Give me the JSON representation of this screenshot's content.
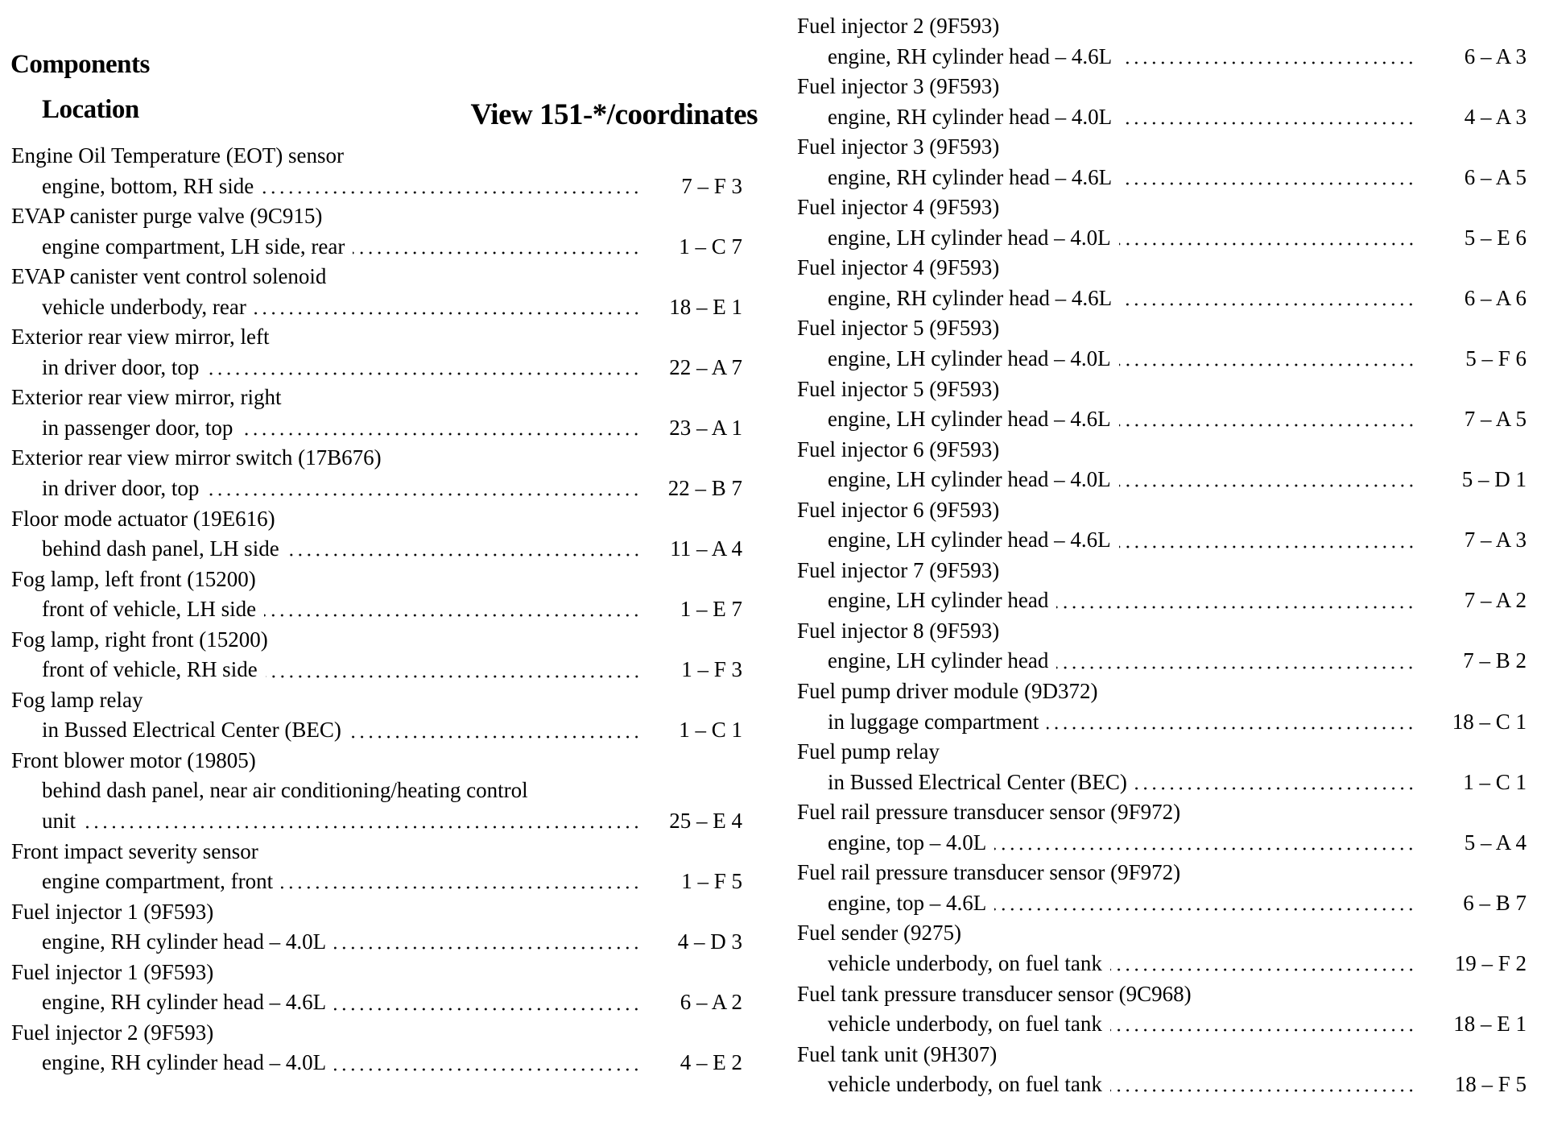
{
  "header": {
    "title": "Components",
    "location_heading": "Location",
    "view_heading": "View 151-*/coordinates"
  },
  "left_column": [
    {
      "name": "Engine Oil Temperature (EOT) sensor",
      "location": [
        "engine, bottom, RH side"
      ],
      "coord": "7 – F 3"
    },
    {
      "name": "EVAP canister purge valve (9C915)",
      "location": [
        "engine compartment, LH side, rear"
      ],
      "coord": "1 – C 7"
    },
    {
      "name": "EVAP canister vent control solenoid",
      "location": [
        "vehicle underbody, rear"
      ],
      "coord": "18 – E 1"
    },
    {
      "name": "Exterior rear view mirror, left",
      "location": [
        "in driver door, top"
      ],
      "coord": "22 – A 7"
    },
    {
      "name": "Exterior rear view mirror, right",
      "location": [
        "in passenger door, top"
      ],
      "coord": "23 – A 1"
    },
    {
      "name": "Exterior rear view mirror switch (17B676)",
      "location": [
        "in driver door, top"
      ],
      "coord": "22 – B 7"
    },
    {
      "name": "Floor mode actuator (19E616)",
      "location": [
        "behind dash panel, LH side"
      ],
      "coord": "11 – A 4"
    },
    {
      "name": "Fog lamp, left front (15200)",
      "location": [
        "front of vehicle, LH side"
      ],
      "coord": "1 – E 7"
    },
    {
      "name": "Fog lamp, right front (15200)",
      "location": [
        "front of vehicle, RH side"
      ],
      "coord": "1 – F 3"
    },
    {
      "name": "Fog lamp relay",
      "location": [
        "in Bussed Electrical Center (BEC)"
      ],
      "coord": "1 – C 1"
    },
    {
      "name": "Front blower motor (19805)",
      "location": [
        "behind dash panel, near air conditioning/heating control",
        "unit"
      ],
      "coord": "25 – E 4"
    },
    {
      "name": "Front impact severity sensor",
      "location": [
        "engine compartment, front"
      ],
      "coord": "1 – F 5"
    },
    {
      "name": "Fuel injector 1 (9F593)",
      "location": [
        "engine, RH cylinder head – 4.0L"
      ],
      "coord": "4 – D 3"
    },
    {
      "name": "Fuel injector 1 (9F593)",
      "location": [
        "engine, RH cylinder head – 4.6L"
      ],
      "coord": "6 – A 2"
    },
    {
      "name": "Fuel injector 2 (9F593)",
      "location": [
        "engine, RH cylinder head – 4.0L"
      ],
      "coord": "4 – E 2"
    }
  ],
  "right_column": [
    {
      "name": "Fuel injector 2 (9F593)",
      "location": [
        "engine, RH cylinder head – 4.6L"
      ],
      "coord": "6 – A 3"
    },
    {
      "name": "Fuel injector 3 (9F593)",
      "location": [
        "engine, RH cylinder head – 4.0L"
      ],
      "coord": "4 – A 3"
    },
    {
      "name": "Fuel injector 3 (9F593)",
      "location": [
        "engine, RH cylinder head – 4.6L"
      ],
      "coord": "6 – A 5"
    },
    {
      "name": "Fuel injector 4 (9F593)",
      "location": [
        "engine, LH cylinder head – 4.0L"
      ],
      "coord": "5 – E 6"
    },
    {
      "name": "Fuel injector 4 (9F593)",
      "location": [
        "engine, RH cylinder head – 4.6L"
      ],
      "coord": "6 – A 6"
    },
    {
      "name": "Fuel injector 5 (9F593)",
      "location": [
        "engine, LH cylinder head – 4.0L"
      ],
      "coord": "5 – F 6"
    },
    {
      "name": "Fuel injector 5 (9F593)",
      "location": [
        "engine, LH cylinder head – 4.6L"
      ],
      "coord": "7 – A 5"
    },
    {
      "name": "Fuel injector 6 (9F593)",
      "location": [
        "engine, LH cylinder head – 4.0L"
      ],
      "coord": "5 – D 1"
    },
    {
      "name": "Fuel injector 6 (9F593)",
      "location": [
        "engine, LH cylinder head – 4.6L"
      ],
      "coord": "7 – A 3"
    },
    {
      "name": "Fuel injector 7 (9F593)",
      "location": [
        "engine, LH cylinder head"
      ],
      "coord": "7 – A 2"
    },
    {
      "name": "Fuel injector 8 (9F593)",
      "location": [
        "engine, LH cylinder head"
      ],
      "coord": "7 – B 2"
    },
    {
      "name": "Fuel pump driver module (9D372)",
      "location": [
        "in luggage compartment"
      ],
      "coord": "18 – C 1"
    },
    {
      "name": "Fuel pump relay",
      "location": [
        "in Bussed Electrical Center (BEC)"
      ],
      "coord": "1 – C 1"
    },
    {
      "name": "Fuel rail pressure transducer sensor (9F972)",
      "location": [
        "engine, top – 4.0L"
      ],
      "coord": "5 – A 4"
    },
    {
      "name": "Fuel rail pressure transducer sensor (9F972)",
      "location": [
        "engine, top – 4.6L"
      ],
      "coord": "6 – B 7"
    },
    {
      "name": "Fuel sender (9275)",
      "location": [
        "vehicle underbody, on fuel tank"
      ],
      "coord": "19 – F 2"
    },
    {
      "name": "Fuel tank pressure transducer sensor (9C968)",
      "location": [
        "vehicle underbody, on fuel tank"
      ],
      "coord": "18 – E 1"
    },
    {
      "name": "Fuel tank unit (9H307)",
      "location": [
        "vehicle underbody, on fuel tank"
      ],
      "coord": "18 – F 5"
    }
  ]
}
